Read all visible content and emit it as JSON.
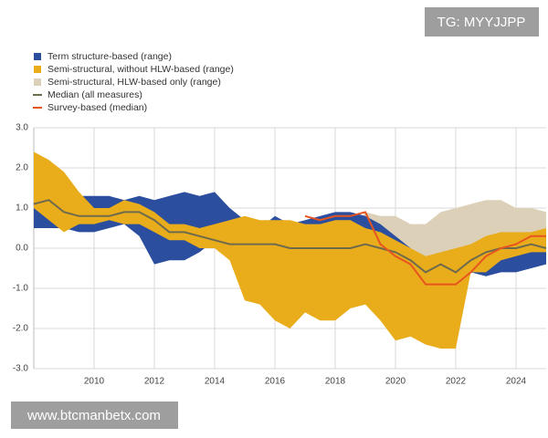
{
  "chart_data": {
    "type": "band",
    "x": [
      2008.0,
      2008.5,
      2009.0,
      2009.5,
      2010.0,
      2010.5,
      2011.0,
      2011.5,
      2012.0,
      2012.5,
      2013.0,
      2013.5,
      2014.0,
      2014.5,
      2015.0,
      2015.5,
      2016.0,
      2016.5,
      2017.0,
      2017.5,
      2018.0,
      2018.5,
      2019.0,
      2019.5,
      2020.0,
      2020.5,
      2021.0,
      2021.5,
      2022.0,
      2022.5,
      2023.0,
      2023.5,
      2024.0,
      2024.5,
      2025.0
    ],
    "xlim": [
      2008,
      2025
    ],
    "xticks": [
      2010,
      2012,
      2014,
      2016,
      2018,
      2020,
      2022,
      2024
    ],
    "ylim": [
      -3,
      3
    ],
    "yticks": [
      {
        "value": 3,
        "label": "3.0"
      },
      {
        "value": 2,
        "label": "2.0"
      },
      {
        "value": 1,
        "label": "1.0"
      },
      {
        "value": 0,
        "label": "0.0"
      },
      {
        "value": -1,
        "label": "-1.0"
      },
      {
        "value": -2,
        "label": "-2.0"
      },
      {
        "value": -3,
        "label": "-3.0"
      }
    ],
    "grid": true,
    "series": [
      {
        "name": "Term structure-based (range)",
        "color": "#2b4e9e",
        "high": [
          1.3,
          1.2,
          1.0,
          1.3,
          1.3,
          1.3,
          1.2,
          1.3,
          1.2,
          1.3,
          1.4,
          1.3,
          1.4,
          1.0,
          0.7,
          0.5,
          0.8,
          0.6,
          0.7,
          0.8,
          0.9,
          0.9,
          0.8,
          0.6,
          0.3,
          0.0,
          -0.4,
          -0.4,
          -0.2,
          0.0,
          0.1,
          0.2,
          0.3,
          0.2,
          0.3
        ],
        "low": [
          0.5,
          0.5,
          0.5,
          0.4,
          0.4,
          0.5,
          0.6,
          0.3,
          -0.4,
          -0.3,
          -0.3,
          -0.1,
          0.2,
          0.4,
          0.4,
          0.2,
          0.3,
          0.2,
          0.2,
          0.3,
          0.4,
          0.5,
          0.3,
          0.1,
          -0.2,
          -0.4,
          -0.7,
          -0.9,
          -0.8,
          -0.6,
          -0.7,
          -0.6,
          -0.6,
          -0.5,
          -0.4
        ]
      },
      {
        "name": "Semi-structural, without HLW-based (range)",
        "color": "#e9ad1c",
        "high": [
          2.4,
          2.2,
          1.9,
          1.4,
          1.0,
          1.0,
          1.2,
          1.1,
          0.9,
          0.6,
          0.6,
          0.5,
          0.6,
          0.7,
          0.8,
          0.7,
          0.7,
          0.7,
          0.6,
          0.6,
          0.7,
          0.7,
          0.5,
          0.4,
          0.2,
          0.0,
          -0.2,
          -0.1,
          0.0,
          0.1,
          0.3,
          0.4,
          0.4,
          0.4,
          0.5
        ],
        "low": [
          1.0,
          0.7,
          0.4,
          0.6,
          0.6,
          0.7,
          0.6,
          0.6,
          0.4,
          0.2,
          0.2,
          0.0,
          0.0,
          -0.3,
          -1.3,
          -1.4,
          -1.8,
          -2.0,
          -1.6,
          -1.8,
          -1.8,
          -1.5,
          -1.4,
          -1.8,
          -2.3,
          -2.2,
          -2.4,
          -2.5,
          -2.5,
          -0.6,
          -0.6,
          -0.3,
          -0.2,
          -0.1,
          -0.1
        ]
      },
      {
        "name": "Semi-structural, HLW-based only (range)",
        "color": "#ddd0b9",
        "high": [
          1.3,
          1.4,
          1.1,
          1.0,
          1.0,
          1.0,
          1.1,
          1.1,
          0.9,
          0.6,
          0.6,
          0.5,
          0.4,
          0.3,
          0.3,
          0.3,
          0.3,
          0.2,
          0.2,
          0.2,
          0.2,
          0.3,
          0.9,
          0.8,
          0.8,
          0.6,
          0.6,
          0.9,
          1.0,
          1.1,
          1.2,
          1.2,
          1.0,
          1.0,
          0.9
        ],
        "low": [
          1.0,
          1.1,
          0.8,
          0.7,
          0.7,
          0.7,
          0.8,
          0.8,
          0.6,
          0.3,
          0.3,
          0.2,
          0.1,
          0.0,
          0.0,
          0.0,
          0.0,
          -0.1,
          -0.1,
          -0.1,
          -0.1,
          -0.1,
          0.2,
          0.0,
          0.0,
          -0.3,
          -0.5,
          -0.3,
          -0.3,
          -0.2,
          -0.1,
          0.0,
          0.1,
          0.1,
          0.1
        ]
      },
      {
        "name": "Median (all measures)",
        "color": "#6e6a4c",
        "values": [
          1.1,
          1.2,
          0.9,
          0.8,
          0.8,
          0.8,
          0.9,
          0.9,
          0.7,
          0.4,
          0.4,
          0.3,
          0.2,
          0.1,
          0.1,
          0.1,
          0.1,
          0.0,
          0.0,
          0.0,
          0.0,
          0.0,
          0.1,
          0.0,
          -0.1,
          -0.3,
          -0.6,
          -0.4,
          -0.6,
          -0.3,
          -0.1,
          0.0,
          0.0,
          0.1,
          0.0
        ]
      },
      {
        "name": "Survey-based (median)",
        "color": "#e8541e",
        "values": [
          null,
          null,
          null,
          null,
          null,
          null,
          null,
          null,
          null,
          null,
          null,
          null,
          null,
          null,
          null,
          null,
          null,
          null,
          0.8,
          0.7,
          0.8,
          0.8,
          0.9,
          0.1,
          -0.2,
          -0.4,
          -0.9,
          -0.9,
          -0.9,
          -0.6,
          -0.2,
          0.0,
          0.1,
          0.3,
          0.3
        ]
      }
    ]
  },
  "overlay": {
    "badge": "TG: MYYJJPP",
    "footer": "www.btcmanbetx.com"
  }
}
